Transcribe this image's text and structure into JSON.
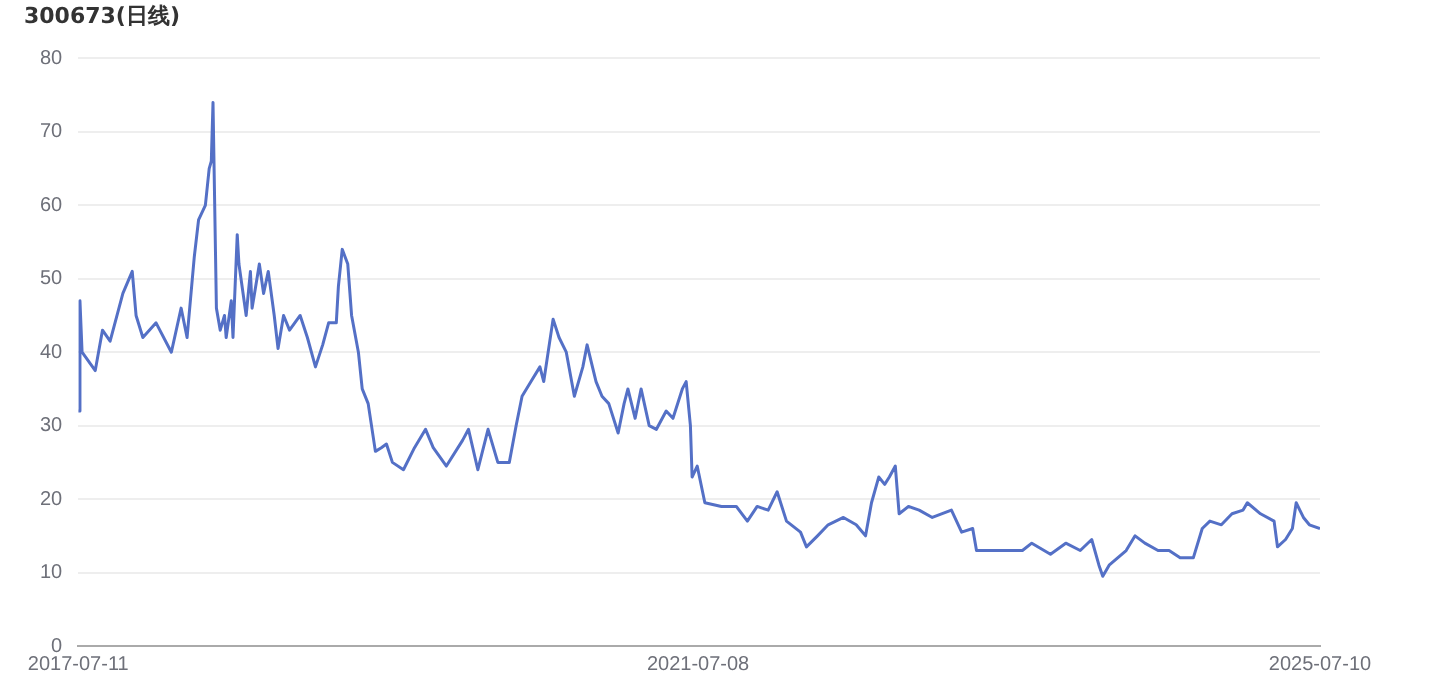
{
  "chart_data": {
    "type": "line",
    "title": "300673(日线)",
    "x": [
      "2017-07-11",
      "2017-07-15",
      "2017-07-20",
      "2017-08-20",
      "2017-09-06",
      "2017-09-24",
      "2017-10-24",
      "2017-11-15",
      "2017-11-24",
      "2017-12-10",
      "2018-01-10",
      "2018-02-15",
      "2018-03-10",
      "2018-03-24",
      "2018-04-10",
      "2018-04-20",
      "2018-05-06",
      "2018-05-15",
      "2018-05-20",
      "2018-05-24",
      "2018-06-01",
      "2018-06-10",
      "2018-06-20",
      "2018-06-24",
      "2018-07-06",
      "2018-07-10",
      "2018-07-20",
      "2018-07-24",
      "2018-08-10",
      "2018-08-20",
      "2018-08-24",
      "2018-09-10",
      "2018-09-20",
      "2018-10-01",
      "2018-10-15",
      "2018-10-24",
      "2018-11-06",
      "2018-11-20",
      "2018-12-15",
      "2019-01-01",
      "2019-01-20",
      "2019-02-06",
      "2019-02-20",
      "2019-03-10",
      "2019-03-15",
      "2019-03-24",
      "2019-04-06",
      "2019-04-15",
      "2019-05-01",
      "2019-05-10",
      "2019-05-24",
      "2019-06-10",
      "2019-06-24",
      "2019-07-06",
      "2019-07-20",
      "2019-08-15",
      "2019-09-10",
      "2019-10-06",
      "2019-10-24",
      "2019-11-24",
      "2020-01-01",
      "2020-01-15",
      "2020-02-06",
      "2020-03-01",
      "2020-03-24",
      "2020-04-20",
      "2020-05-06",
      "2020-05-20",
      "2020-06-10",
      "2020-07-01",
      "2020-07-10",
      "2020-08-01",
      "2020-08-15",
      "2020-09-01",
      "2020-09-20",
      "2020-10-10",
      "2020-10-20",
      "2020-11-10",
      "2020-11-24",
      "2020-12-10",
      "2021-01-01",
      "2021-01-15",
      "2021-01-24",
      "2021-02-10",
      "2021-02-24",
      "2021-03-15",
      "2021-04-01",
      "2021-04-24",
      "2021-05-10",
      "2021-06-01",
      "2021-06-10",
      "2021-06-20",
      "2021-06-24",
      "2021-07-06",
      "2021-07-24",
      "2021-09-01",
      "2021-10-06",
      "2021-11-01",
      "2021-11-24",
      "2021-12-20",
      "2022-01-10",
      "2022-02-01",
      "2022-03-06",
      "2022-03-20",
      "2022-04-15",
      "2022-05-10",
      "2022-06-15",
      "2022-07-15",
      "2022-08-06",
      "2022-08-20",
      "2022-09-06",
      "2022-09-20",
      "2022-10-01",
      "2022-10-15",
      "2022-10-24",
      "2022-11-15",
      "2022-12-10",
      "2023-01-10",
      "2023-02-24",
      "2023-03-20",
      "2023-04-15",
      "2023-04-24",
      "2023-06-06",
      "2023-07-06",
      "2023-08-10",
      "2023-09-01",
      "2023-10-15",
      "2023-11-20",
      "2023-12-24",
      "2024-01-20",
      "2024-02-06",
      "2024-02-15",
      "2024-03-01",
      "2024-04-10",
      "2024-05-01",
      "2024-05-24",
      "2024-06-24",
      "2024-07-20",
      "2024-08-15",
      "2024-09-15",
      "2024-10-06",
      "2024-10-24",
      "2024-11-20",
      "2024-12-15",
      "2025-01-10",
      "2025-01-20",
      "2025-02-20",
      "2025-03-24",
      "2025-04-01",
      "2025-04-20",
      "2025-05-06",
      "2025-05-15",
      "2025-06-01",
      "2025-06-15",
      "2025-07-10"
    ],
    "series": [
      {
        "color": "#5470c6",
        "values": [
          32,
          47,
          40,
          37.5,
          43,
          41.5,
          48,
          51,
          45,
          42,
          44,
          40,
          46,
          42,
          53,
          58,
          60,
          65,
          66,
          74,
          46,
          43,
          45,
          42,
          47,
          42,
          56,
          52,
          45,
          51,
          46,
          52,
          48,
          51,
          45,
          40.5,
          45,
          43,
          45,
          42,
          38,
          41,
          44,
          44,
          49,
          54,
          52,
          45,
          40,
          35,
          33,
          26.5,
          27,
          27.5,
          25,
          24,
          27,
          29.5,
          27,
          24.5,
          28,
          29.5,
          24,
          29.5,
          25,
          25,
          30,
          34,
          36,
          38,
          36,
          44.5,
          42,
          40,
          34,
          38,
          41,
          36,
          34,
          33,
          29,
          33,
          35,
          31,
          35,
          30,
          29.5,
          32,
          31,
          35,
          36,
          30,
          23,
          24.5,
          19.5,
          19,
          19,
          17,
          19,
          18.5,
          21,
          17,
          15.5,
          13.5,
          15,
          16.5,
          17.5,
          16.5,
          15,
          19.5,
          23,
          22,
          23,
          24.5,
          18,
          19,
          18.5,
          17.5,
          18.5,
          15.5,
          16,
          13,
          13,
          13,
          13,
          14,
          12.5,
          14,
          13,
          14.5,
          11,
          9.5,
          11,
          13,
          15,
          14,
          13,
          13,
          12,
          12,
          16,
          17,
          16.5,
          18,
          18.5,
          19.5,
          18,
          17,
          13.5,
          14.5,
          16,
          19.5,
          17.5,
          16.5,
          16
        ]
      }
    ],
    "xlim": [
      "2017-07-11",
      "2025-07-10"
    ],
    "xticks": [
      "2017-07-11",
      "2021-07-08",
      "2025-07-10"
    ],
    "ylim": [
      0,
      80
    ],
    "yticks": [
      0,
      10,
      20,
      30,
      40,
      50,
      60,
      70,
      80
    ],
    "grid": "y",
    "marker": "none",
    "line_style": "solid"
  }
}
